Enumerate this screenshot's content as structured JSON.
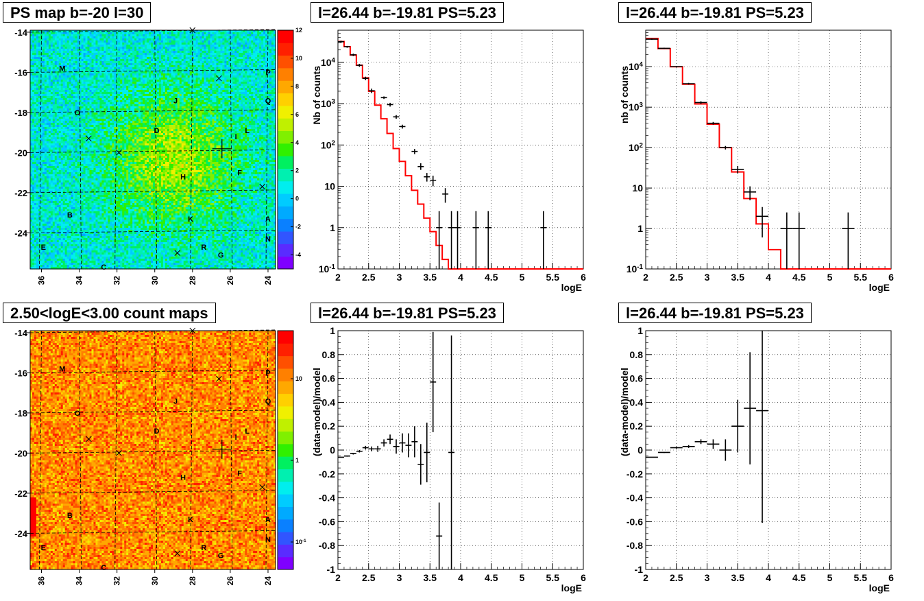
{
  "titles": {
    "map_top": "PS map b=-20 l=30",
    "spec1": "l=26.44 b=-19.81 PS=5.23",
    "spec2": "l=26.44 b=-19.81 PS=5.23",
    "map_bottom": "2.50<logE<3.00 count maps",
    "resid1": "l=26.44 b=-19.81 PS=5.23",
    "resid2": "l=26.44 b=-19.81 PS=5.23"
  },
  "colors": {
    "data": "#000000",
    "model": "#ff0000",
    "grid": "#000000"
  },
  "chart_data": [
    {
      "type": "heatmap",
      "id": "map_top",
      "title": "PS map b=-20 l=30",
      "xlim": [
        36.6,
        23.6
      ],
      "ylim": [
        -25.8,
        -13.9
      ],
      "x_ticks": [
        36,
        34,
        32,
        30,
        28,
        26,
        24
      ],
      "y_ticks": [
        -14,
        -16,
        -18,
        -20,
        -22,
        -24
      ],
      "colorbar_ticks": [
        "12",
        "10",
        "8",
        "6",
        "4",
        "2",
        "0",
        "-2",
        "-4"
      ],
      "colorbar_scale": "linear",
      "colorbar_range": [
        -5,
        12
      ],
      "letters": [
        {
          "t": "M",
          "l": 34.9,
          "b": -15.8
        },
        {
          "t": "P",
          "l": 24.0,
          "b": -16.0
        },
        {
          "t": "J",
          "l": 28.9,
          "b": -17.4
        },
        {
          "t": "Q",
          "l": 24.0,
          "b": -17.4
        },
        {
          "t": "O",
          "l": 34.1,
          "b": -18.0
        },
        {
          "t": "D",
          "l": 29.9,
          "b": -18.9
        },
        {
          "t": "L",
          "l": 25.1,
          "b": -18.9
        },
        {
          "t": "I",
          "l": 25.7,
          "b": -19.2
        },
        {
          "t": "H",
          "l": 28.5,
          "b": -21.2
        },
        {
          "t": "F",
          "l": 25.5,
          "b": -21.0
        },
        {
          "t": "B",
          "l": 34.5,
          "b": -23.1
        },
        {
          "t": "K",
          "l": 28.1,
          "b": -23.3
        },
        {
          "t": "A",
          "l": 24.0,
          "b": -23.3
        },
        {
          "t": "N",
          "l": 24.0,
          "b": -24.3
        },
        {
          "t": "E",
          "l": 35.9,
          "b": -24.7
        },
        {
          "t": "R",
          "l": 27.4,
          "b": -24.7
        },
        {
          "t": "G",
          "l": 26.5,
          "b": -25.1
        },
        {
          "t": "C",
          "l": 32.7,
          "b": -25.7
        }
      ],
      "crosses": [
        {
          "l": 28.0,
          "b": -13.9
        },
        {
          "l": 26.6,
          "b": -16.3
        },
        {
          "l": 33.5,
          "b": -19.3
        },
        {
          "l": 31.9,
          "b": -20.0
        },
        {
          "l": 24.3,
          "b": -21.7
        },
        {
          "l": 28.8,
          "b": -25.0
        }
      ],
      "source": {
        "l": 26.44,
        "b": -19.81
      }
    },
    {
      "type": "heatmap",
      "id": "map_bottom",
      "title": "2.50<logE<3.00 count maps",
      "xlim": [
        36.6,
        23.6
      ],
      "ylim": [
        -25.8,
        -13.9
      ],
      "x_ticks": [
        36,
        34,
        32,
        30,
        28,
        26,
        24
      ],
      "y_ticks": [
        -14,
        -16,
        -18,
        -20,
        -22,
        -24
      ],
      "colorbar_ticks": [
        "10",
        "1",
        "10^-1"
      ],
      "colorbar_scale": "log"
    },
    {
      "type": "line",
      "id": "spec1",
      "title": "l=26.44 b=-19.81 PS=5.23",
      "xlabel": "logE",
      "ylabel": "Nb of counts",
      "xlim": [
        2,
        6
      ],
      "ylim": [
        0.1,
        60000
      ],
      "yscale": "log",
      "x_ticks": [
        "2",
        "2.5",
        "3",
        "3.5",
        "4",
        "4.5",
        "5",
        "5.5",
        "6"
      ],
      "y_ticks": [
        "10^-1",
        "1",
        "10",
        "10^2",
        "10^3",
        "10^4"
      ],
      "grid": true,
      "model_step": {
        "edges": [
          2,
          2.1,
          2.2,
          2.3,
          2.4,
          2.5,
          2.6,
          2.7,
          2.8,
          2.9,
          3.0,
          3.1,
          3.2,
          3.3,
          3.4,
          3.5,
          3.6,
          3.7,
          3.8,
          3.9,
          4.0,
          4.1,
          4.2,
          4.3,
          6.0
        ],
        "values": [
          32000,
          24000,
          15000,
          8500,
          4200,
          2000,
          920,
          430,
          190,
          82,
          40,
          18,
          8,
          3.7,
          1.7,
          0.8,
          0.37,
          0.17,
          0.1,
          0.1,
          0.1,
          0.1,
          0.1,
          0.1
        ]
      },
      "data_points": [
        {
          "x": 2.05,
          "y": 31500,
          "ylo": 29500,
          "yhi": 33500
        },
        {
          "x": 2.15,
          "y": 23800,
          "ylo": 22500,
          "yhi": 25000
        },
        {
          "x": 2.25,
          "y": 15200,
          "ylo": 14200,
          "yhi": 16200
        },
        {
          "x": 2.35,
          "y": 8500,
          "ylo": 7800,
          "yhi": 9200
        },
        {
          "x": 2.45,
          "y": 4100,
          "ylo": 3700,
          "yhi": 4500
        },
        {
          "x": 2.55,
          "y": 2050,
          "ylo": 1800,
          "yhi": 2300
        },
        {
          "x": 2.75,
          "y": 1400,
          "ylo": 1300,
          "yhi": 1500
        },
        {
          "x": 2.85,
          "y": 950,
          "ylo": 850,
          "yhi": 1050
        },
        {
          "x": 2.95,
          "y": 480,
          "ylo": 430,
          "yhi": 530
        },
        {
          "x": 3.05,
          "y": 280,
          "ylo": 250,
          "yhi": 310
        },
        {
          "x": 3.25,
          "y": 70,
          "ylo": 60,
          "yhi": 80
        },
        {
          "x": 3.35,
          "y": 30,
          "ylo": 25,
          "yhi": 36
        },
        {
          "x": 3.45,
          "y": 17,
          "ylo": 13,
          "yhi": 21
        },
        {
          "x": 3.55,
          "y": 14,
          "ylo": 10,
          "yhi": 18
        },
        {
          "x": 3.65,
          "y": 1,
          "ylo": 0.1,
          "yhi": 2.5
        },
        {
          "x": 3.75,
          "y": 6.5,
          "ylo": 4,
          "yhi": 9
        },
        {
          "x": 3.85,
          "y": 1,
          "ylo": 0.1,
          "yhi": 2.5
        },
        {
          "x": 3.95,
          "y": 1,
          "ylo": 0.1,
          "yhi": 2.5
        },
        {
          "x": 4.25,
          "y": 1,
          "ylo": 0.1,
          "yhi": 2.5
        },
        {
          "x": 4.45,
          "y": 1,
          "ylo": 0.1,
          "yhi": 2.5
        },
        {
          "x": 5.35,
          "y": 1,
          "ylo": 0.1,
          "yhi": 2.5
        }
      ],
      "data_halfwidth": 0.05
    },
    {
      "type": "line",
      "id": "spec2",
      "title": "l=26.44 b=-19.81 PS=5.23",
      "xlabel": "logE",
      "ylabel": "nb of counts",
      "xlim": [
        2,
        6
      ],
      "ylim": [
        0.1,
        80000
      ],
      "yscale": "log",
      "x_ticks": [
        "2",
        "2.5",
        "3",
        "3.5",
        "4",
        "4.5",
        "5",
        "5.5",
        "6"
      ],
      "y_ticks": [
        "10^-1",
        "1",
        "10",
        "10^2",
        "10^3",
        "10^4"
      ],
      "grid": true,
      "model_step": {
        "edges": [
          2,
          2.2,
          2.4,
          2.6,
          2.8,
          3.0,
          3.2,
          3.4,
          3.6,
          3.8,
          4.0,
          4.2,
          6.0
        ],
        "values": [
          50000,
          28000,
          10000,
          3700,
          1200,
          380,
          100,
          25,
          5.5,
          1.3,
          0.3,
          0.1
        ]
      },
      "data_points": [
        {
          "x": 2.1,
          "y": 48000,
          "ylo": 46000,
          "yhi": 50000
        },
        {
          "x": 2.3,
          "y": 28500,
          "ylo": 27500,
          "yhi": 29500
        },
        {
          "x": 2.5,
          "y": 10000,
          "ylo": 9500,
          "yhi": 10500
        },
        {
          "x": 2.7,
          "y": 3800,
          "ylo": 3600,
          "yhi": 4000
        },
        {
          "x": 2.9,
          "y": 1300,
          "ylo": 1200,
          "yhi": 1400
        },
        {
          "x": 3.1,
          "y": 400,
          "ylo": 370,
          "yhi": 430
        },
        {
          "x": 3.3,
          "y": 100,
          "ylo": 90,
          "yhi": 110
        },
        {
          "x": 3.5,
          "y": 29,
          "ylo": 23,
          "yhi": 35
        },
        {
          "x": 3.7,
          "y": 8,
          "ylo": 5,
          "yhi": 11
        },
        {
          "x": 3.9,
          "y": 2,
          "ylo": 0.6,
          "yhi": 3.4
        },
        {
          "x": 4.3,
          "y": 1,
          "ylo": 0.1,
          "yhi": 2.5
        },
        {
          "x": 4.5,
          "y": 1,
          "ylo": 0.1,
          "yhi": 2.5
        },
        {
          "x": 5.3,
          "y": 1,
          "ylo": 0.1,
          "yhi": 2.5
        }
      ],
      "data_halfwidth": 0.1
    },
    {
      "type": "scatter",
      "id": "resid1",
      "title": "l=26.44 b=-19.81 PS=5.23",
      "xlabel": "logE",
      "ylabel": "(data-model)/model",
      "xlim": [
        2,
        6
      ],
      "ylim": [
        -1,
        1
      ],
      "x_ticks": [
        "2",
        "2.5",
        "3",
        "3.5",
        "4",
        "4.5",
        "5",
        "5.5",
        "6"
      ],
      "y_ticks": [
        "-1",
        "-0.8",
        "-0.6",
        "-0.4",
        "-0.2",
        "0",
        "0.2",
        "0.4",
        "0.6",
        "0.8",
        "1"
      ],
      "grid": true,
      "data_points": [
        {
          "x": 2.05,
          "y": -0.06,
          "ylo": -0.065,
          "yhi": -0.055
        },
        {
          "x": 2.15,
          "y": -0.05,
          "ylo": -0.055,
          "yhi": -0.045
        },
        {
          "x": 2.25,
          "y": -0.03,
          "ylo": -0.037,
          "yhi": -0.023
        },
        {
          "x": 2.35,
          "y": -0.01,
          "ylo": -0.02,
          "yhi": 0.0
        },
        {
          "x": 2.45,
          "y": 0.02,
          "ylo": 0.005,
          "yhi": 0.035
        },
        {
          "x": 2.55,
          "y": 0.01,
          "ylo": -0.01,
          "yhi": 0.03
        },
        {
          "x": 2.65,
          "y": 0.01,
          "ylo": -0.015,
          "yhi": 0.035
        },
        {
          "x": 2.75,
          "y": 0.06,
          "ylo": 0.03,
          "yhi": 0.09
        },
        {
          "x": 2.85,
          "y": 0.09,
          "ylo": 0.05,
          "yhi": 0.13
        },
        {
          "x": 2.95,
          "y": 0.03,
          "ylo": -0.03,
          "yhi": 0.09
        },
        {
          "x": 3.05,
          "y": 0.06,
          "ylo": -0.02,
          "yhi": 0.14
        },
        {
          "x": 3.15,
          "y": 0.04,
          "ylo": -0.06,
          "yhi": 0.14
        },
        {
          "x": 3.25,
          "y": 0.07,
          "ylo": -0.06,
          "yhi": 0.2
        },
        {
          "x": 3.35,
          "y": -0.12,
          "ylo": -0.29,
          "yhi": 0.05
        },
        {
          "x": 3.45,
          "y": -0.02,
          "ylo": -0.27,
          "yhi": 0.23
        },
        {
          "x": 3.55,
          "y": 0.57,
          "ylo": 0.15,
          "yhi": 0.99
        },
        {
          "x": 3.65,
          "y": -0.72,
          "ylo": -1.0,
          "yhi": -0.44
        },
        {
          "x": 3.85,
          "y": -0.02,
          "ylo": -1.0,
          "yhi": 0.96
        }
      ],
      "data_halfwidth": 0.05
    },
    {
      "type": "scatter",
      "id": "resid2",
      "title": "l=26.44 b=-19.81 PS=5.23",
      "xlabel": "logE",
      "ylabel": "(data-model)/model",
      "xlim": [
        2,
        6
      ],
      "ylim": [
        -1,
        1
      ],
      "x_ticks": [
        "2",
        "2.5",
        "3",
        "3.5",
        "4",
        "4.5",
        "5",
        "5.5",
        "6"
      ],
      "y_ticks": [
        "-1",
        "-0.8",
        "-0.6",
        "-0.4",
        "-0.2",
        "0",
        "0.2",
        "0.4",
        "0.6",
        "0.8",
        "1"
      ],
      "grid": true,
      "data_points": [
        {
          "x": 2.1,
          "y": -0.06,
          "ylo": -0.065,
          "yhi": -0.055
        },
        {
          "x": 2.3,
          "y": -0.02,
          "ylo": -0.025,
          "yhi": -0.015
        },
        {
          "x": 2.5,
          "y": 0.02,
          "ylo": 0.012,
          "yhi": 0.028
        },
        {
          "x": 2.7,
          "y": 0.03,
          "ylo": 0.018,
          "yhi": 0.042
        },
        {
          "x": 2.9,
          "y": 0.07,
          "ylo": 0.05,
          "yhi": 0.09
        },
        {
          "x": 3.1,
          "y": 0.05,
          "ylo": 0.01,
          "yhi": 0.09
        },
        {
          "x": 3.3,
          "y": 0.0,
          "ylo": -0.09,
          "yhi": 0.09
        },
        {
          "x": 3.5,
          "y": 0.2,
          "ylo": -0.02,
          "yhi": 0.42
        },
        {
          "x": 3.7,
          "y": 0.35,
          "ylo": -0.12,
          "yhi": 0.82
        },
        {
          "x": 3.9,
          "y": 0.33,
          "ylo": -0.61,
          "yhi": 1.0
        }
      ],
      "data_halfwidth": 0.1
    }
  ]
}
